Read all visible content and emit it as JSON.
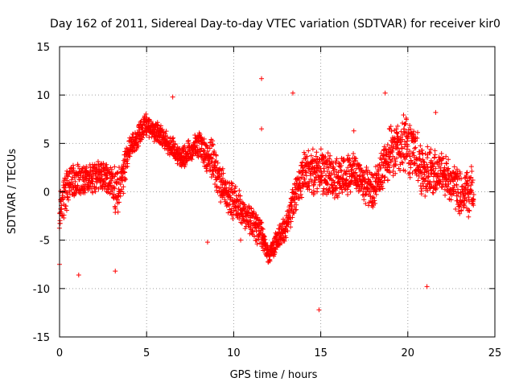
{
  "chart_data": {
    "type": "scatter",
    "title": "Day 162 of 2011, Sidereal Day-to-day VTEC variation (SDTVAR) for receiver kir0",
    "xlabel": "GPS time / hours",
    "ylabel": "SDTVAR / TECUs",
    "xlim": [
      0,
      25
    ],
    "ylim": [
      -15,
      15
    ],
    "xticks": [
      "0",
      "5",
      "10",
      "15",
      "20",
      "25"
    ],
    "yticks": [
      "-15",
      "-10",
      "-5",
      "0",
      "5",
      "10",
      "15"
    ],
    "grid": true,
    "marker": "plus",
    "color": "#ff0000",
    "series": [
      {
        "name": "SDTVAR",
        "trend": [
          {
            "x": 0.0,
            "y": -2.5,
            "spread": 2.5
          },
          {
            "x": 0.5,
            "y": 1.0,
            "spread": 2.5
          },
          {
            "x": 1.0,
            "y": 1.0,
            "spread": 2.0
          },
          {
            "x": 1.5,
            "y": 1.5,
            "spread": 2.0
          },
          {
            "x": 2.0,
            "y": 1.5,
            "spread": 1.8
          },
          {
            "x": 2.5,
            "y": 1.5,
            "spread": 2.0
          },
          {
            "x": 3.0,
            "y": 1.0,
            "spread": 2.0
          },
          {
            "x": 3.3,
            "y": 0.0,
            "spread": 3.0
          },
          {
            "x": 3.7,
            "y": 2.0,
            "spread": 2.0
          },
          {
            "x": 4.0,
            "y": 4.5,
            "spread": 1.5
          },
          {
            "x": 5.0,
            "y": 7.0,
            "spread": 1.2
          },
          {
            "x": 6.0,
            "y": 5.5,
            "spread": 1.2
          },
          {
            "x": 7.0,
            "y": 3.5,
            "spread": 1.2
          },
          {
            "x": 8.0,
            "y": 5.0,
            "spread": 1.5
          },
          {
            "x": 8.8,
            "y": 3.0,
            "spread": 2.5
          },
          {
            "x": 9.5,
            "y": 0.0,
            "spread": 2.0
          },
          {
            "x": 10.5,
            "y": -2.0,
            "spread": 1.8
          },
          {
            "x": 11.5,
            "y": -4.0,
            "spread": 1.8
          },
          {
            "x": 12.0,
            "y": -6.5,
            "spread": 1.0
          },
          {
            "x": 13.0,
            "y": -3.5,
            "spread": 1.5
          },
          {
            "x": 14.0,
            "y": 2.0,
            "spread": 2.5
          },
          {
            "x": 15.0,
            "y": 2.0,
            "spread": 2.5
          },
          {
            "x": 16.0,
            "y": 1.5,
            "spread": 2.5
          },
          {
            "x": 17.0,
            "y": 2.0,
            "spread": 2.5
          },
          {
            "x": 18.0,
            "y": 0.0,
            "spread": 2.0
          },
          {
            "x": 19.0,
            "y": 4.0,
            "spread": 3.0
          },
          {
            "x": 20.0,
            "y": 5.0,
            "spread": 3.5
          },
          {
            "x": 21.0,
            "y": 2.0,
            "spread": 3.0
          },
          {
            "x": 22.0,
            "y": 2.0,
            "spread": 2.5
          },
          {
            "x": 23.0,
            "y": 0.0,
            "spread": 2.5
          },
          {
            "x": 23.8,
            "y": 0.0,
            "spread": 3.0
          }
        ],
        "outliers": [
          {
            "x": 1.1,
            "y": -8.6
          },
          {
            "x": 11.6,
            "y": 11.7
          },
          {
            "x": 11.6,
            "y": 6.5
          },
          {
            "x": 14.9,
            "y": -12.2
          },
          {
            "x": 18.7,
            "y": 10.2
          },
          {
            "x": 21.1,
            "y": -9.8
          },
          {
            "x": 6.5,
            "y": 9.8
          },
          {
            "x": 13.4,
            "y": 10.2
          },
          {
            "x": 10.4,
            "y": -5.0
          },
          {
            "x": 8.5,
            "y": -5.2
          },
          {
            "x": 0.0,
            "y": -7.5
          },
          {
            "x": 3.2,
            "y": -8.2
          },
          {
            "x": 21.6,
            "y": 8.2
          },
          {
            "x": 16.9,
            "y": 6.3
          }
        ]
      }
    ]
  }
}
